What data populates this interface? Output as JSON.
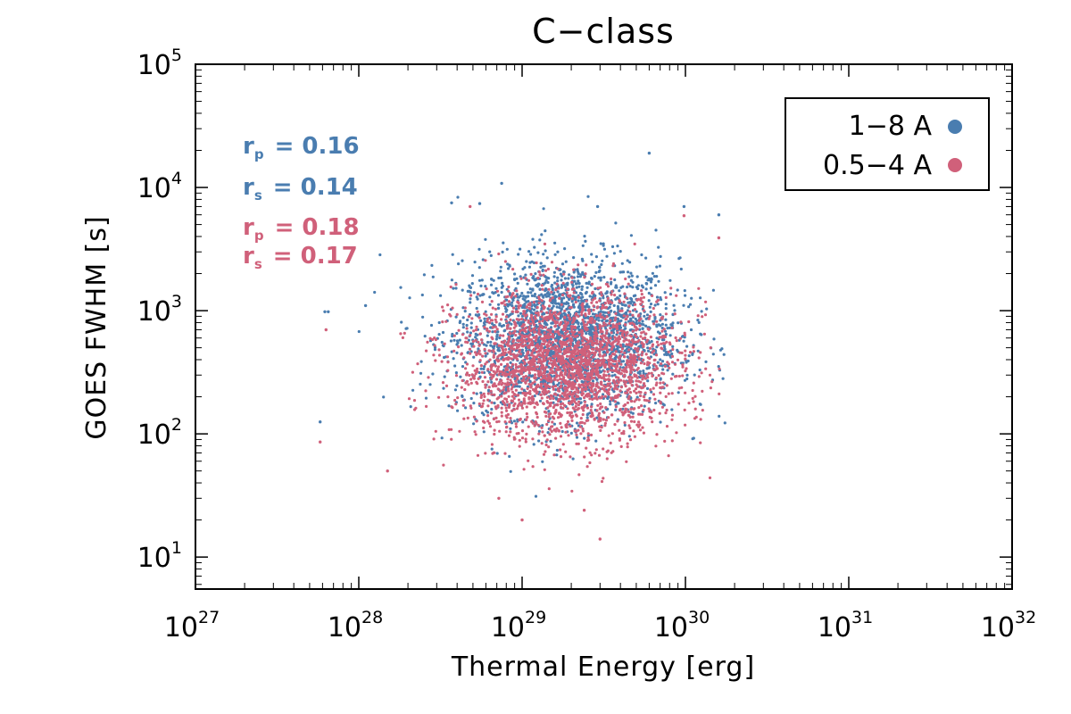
{
  "colors": {
    "blue": "#4a7db0",
    "red": "#d0607a",
    "axis": "#000000"
  },
  "chart_data": {
    "type": "scatter",
    "title": "C−class",
    "xlabel": "Thermal Energy [erg]",
    "ylabel": "GOES FWHM [s]",
    "xscale": "log",
    "yscale": "log",
    "xlim": [
      1e+27,
      1e+32
    ],
    "ylim": [
      5.5,
      100000.0
    ],
    "x_ticks": [
      {
        "base": "10",
        "exp": "27"
      },
      {
        "base": "10",
        "exp": "28"
      },
      {
        "base": "10",
        "exp": "29"
      },
      {
        "base": "10",
        "exp": "30"
      },
      {
        "base": "10",
        "exp": "31"
      },
      {
        "base": "10",
        "exp": "32"
      }
    ],
    "y_ticks": [
      {
        "base": "10",
        "exp": "1"
      },
      {
        "base": "10",
        "exp": "2"
      },
      {
        "base": "10",
        "exp": "3"
      },
      {
        "base": "10",
        "exp": "4"
      },
      {
        "base": "10",
        "exp": "5"
      }
    ],
    "legend_position": "top-right",
    "series": [
      {
        "name": "1−8 A",
        "color": "#4a7db0",
        "n_points": 2500,
        "log10_x_center": 29.28,
        "log10_x_spread": 0.34,
        "log10_y_center": 2.78,
        "log10_y_spread": 0.32,
        "outliers": [
          {
            "x": 5.8e+27,
            "y": 125
          },
          {
            "x": 6.2e+27,
            "y": 980
          },
          {
            "x": 6.5e+27,
            "y": 980
          },
          {
            "x": 1.1e+28,
            "y": 1100
          },
          {
            "x": 3.7e+28,
            "y": 7500
          },
          {
            "x": 7.5e+28,
            "y": 10800
          },
          {
            "x": 6e+29,
            "y": 19000
          },
          {
            "x": 9.8e+29,
            "y": 7000
          },
          {
            "x": 1.6e+30,
            "y": 6000
          },
          {
            "x": 2.9e+29,
            "y": 7000
          },
          {
            "x": 5.5e+28,
            "y": 7400
          }
        ]
      },
      {
        "name": "0.5−4 A",
        "color": "#d0607a",
        "n_points": 2500,
        "log10_x_center": 29.28,
        "log10_x_spread": 0.34,
        "log10_y_center": 2.55,
        "log10_y_spread": 0.3,
        "outliers": [
          {
            "x": 5.8e+27,
            "y": 86
          },
          {
            "x": 6.3e+27,
            "y": 700
          },
          {
            "x": 1.5e+28,
            "y": 50
          },
          {
            "x": 1e+29,
            "y": 20
          },
          {
            "x": 3e+29,
            "y": 14
          },
          {
            "x": 2.4e+29,
            "y": 24
          },
          {
            "x": 1.6e+30,
            "y": 3900
          },
          {
            "x": 9.8e+29,
            "y": 5900
          },
          {
            "x": 7.2e+28,
            "y": 30
          },
          {
            "x": 4.8e+28,
            "y": 7000
          }
        ]
      }
    ],
    "annotations": [
      {
        "series": "blue",
        "symbol": "r",
        "subscript": "p",
        "text": "= 0.16"
      },
      {
        "series": "blue",
        "symbol": "r",
        "subscript": "s",
        "text": "= 0.14"
      },
      {
        "series": "red",
        "symbol": "r",
        "subscript": "p",
        "text": "= 0.18"
      },
      {
        "series": "red",
        "symbol": "r",
        "subscript": "s",
        "text": "= 0.17"
      }
    ]
  }
}
